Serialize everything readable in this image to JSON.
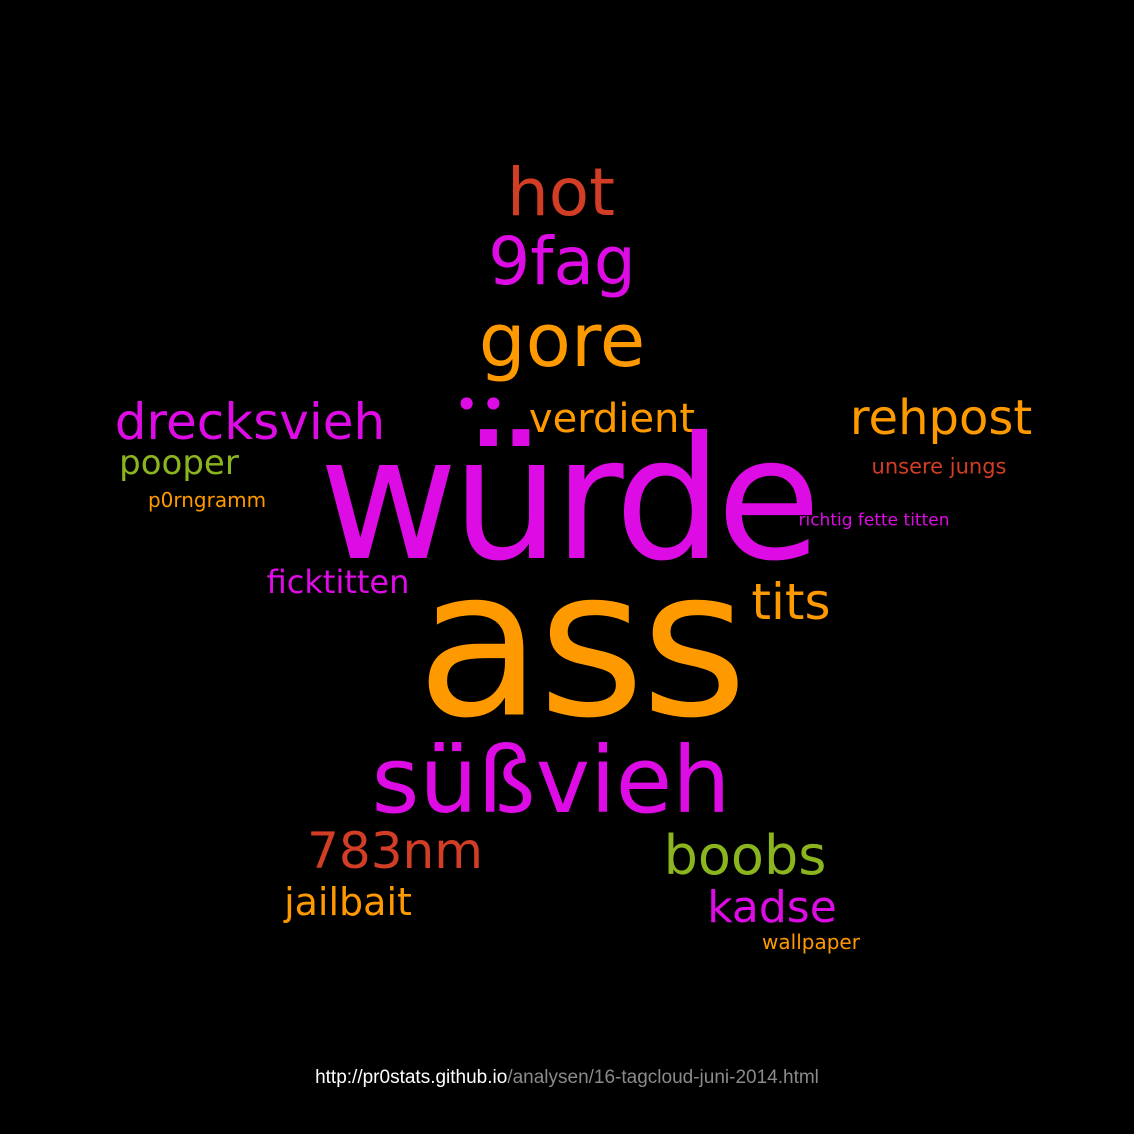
{
  "palette": {
    "background": "#000000",
    "magenta": "#DD0BE4",
    "orange": "#FF9900",
    "red": "#D23D25",
    "green": "#8BB51E",
    "footer_host": "#FFFFFF",
    "footer_path": "#8A8A8A"
  },
  "words": {
    "wurde": "würde",
    "ass": "ass",
    "hot": "hot",
    "nine_fag": "9fag",
    "gore": "gore",
    "drecksvieh": "drecksvieh",
    "dots": "••",
    "verdient": "verdient",
    "rehpost": "rehpost",
    "pooper": "pooper",
    "unsere_jungs": "unsere jungs",
    "p0rngramm": "p0rngramm",
    "richtig_fette_titten": "richtig fette titten",
    "ficktitten": "ficktitten",
    "tits": "tits",
    "susvieh": "süßvieh",
    "nm783": "783nm",
    "boobs": "boobs",
    "jailbait": "jailbait",
    "kadse": "kadse",
    "wallpaper": "wallpaper"
  },
  "footer": {
    "host": "http://pr0stats.github.io",
    "path": "/analysen/16-tagcloud-juni-2014.html"
  }
}
